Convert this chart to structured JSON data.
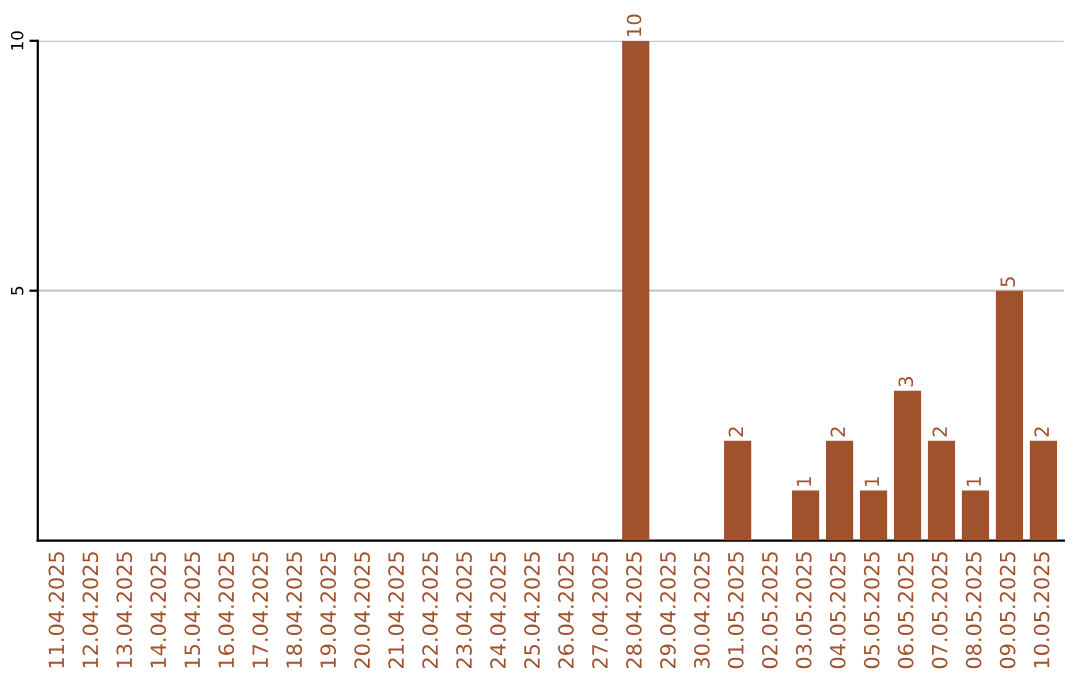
{
  "chart_data": {
    "type": "bar",
    "categories": [
      "11.04.2025",
      "12.04.2025",
      "13.04.2025",
      "14.04.2025",
      "15.04.2025",
      "16.04.2025",
      "17.04.2025",
      "18.04.2025",
      "19.04.2025",
      "20.04.2025",
      "21.04.2025",
      "22.04.2025",
      "23.04.2025",
      "24.04.2025",
      "25.04.2025",
      "26.04.2025",
      "27.04.2025",
      "28.04.2025",
      "29.04.2025",
      "30.04.2025",
      "01.05.2025",
      "02.05.2025",
      "03.05.2025",
      "04.05.2025",
      "05.05.2025",
      "06.05.2025",
      "07.05.2025",
      "08.05.2025",
      "09.05.2025",
      "10.05.2025"
    ],
    "values": [
      0,
      0,
      0,
      0,
      0,
      0,
      0,
      0,
      0,
      0,
      0,
      0,
      0,
      0,
      0,
      0,
      0,
      10,
      0,
      0,
      2,
      0,
      1,
      2,
      1,
      3,
      2,
      1,
      5,
      2
    ],
    "value_labels": [
      null,
      null,
      null,
      null,
      null,
      null,
      null,
      null,
      null,
      null,
      null,
      null,
      null,
      null,
      null,
      null,
      null,
      "10",
      null,
      null,
      "2",
      null,
      "1",
      "2",
      "1",
      "3",
      "2",
      "1",
      "5",
      "2"
    ],
    "color": "#a0522d",
    "ylim": [
      0,
      10
    ],
    "yticks": [
      5,
      10
    ],
    "grid": "y"
  }
}
